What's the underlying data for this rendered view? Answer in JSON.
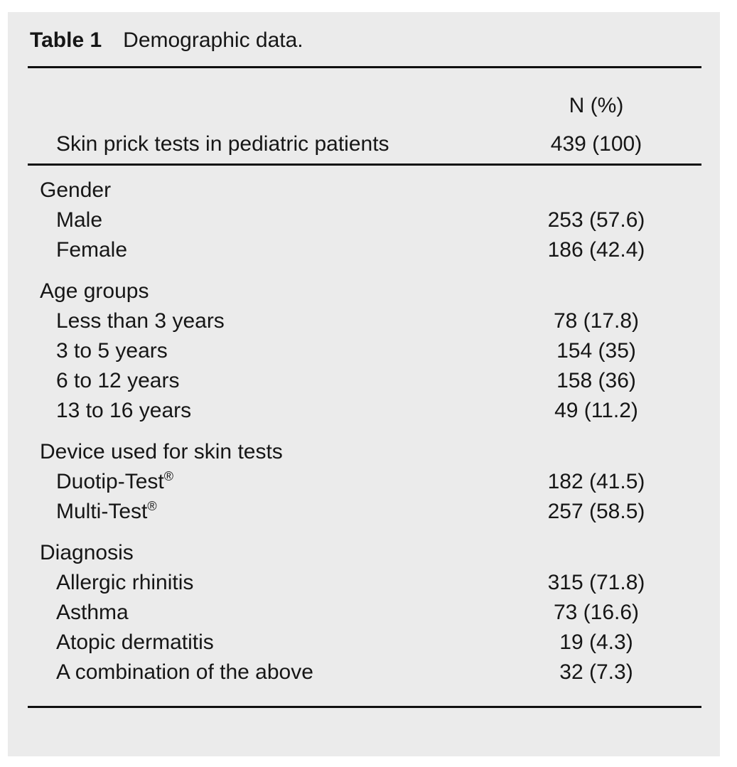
{
  "colors": {
    "panel_bg": "#ebebeb",
    "text": "#161616",
    "rule": "#0f0f0f",
    "page_bg": "#ffffff"
  },
  "table": {
    "label": "Table 1",
    "title": "Demographic data.",
    "column_header": "N (%)",
    "summary_row": {
      "label": "Skin prick tests in pediatric patients",
      "value": "439 (100)"
    },
    "sections": [
      {
        "header": "Gender",
        "rows": [
          {
            "label": "Male",
            "value": "253 (57.6)"
          },
          {
            "label": "Female",
            "value": "186 (42.4)"
          }
        ]
      },
      {
        "header": "Age groups",
        "rows": [
          {
            "label": "Less than 3 years",
            "value": "78 (17.8)"
          },
          {
            "label": "3 to 5 years",
            "value": "154 (35)"
          },
          {
            "label": "6 to 12 years",
            "value": "158 (36)"
          },
          {
            "label": "13 to 16 years",
            "value": "49 (11.2)"
          }
        ]
      },
      {
        "header": "Device used for skin tests",
        "rows": [
          {
            "label": "Duotip-Test",
            "suffix": "®",
            "value": "182 (41.5)"
          },
          {
            "label": "Multi-Test",
            "suffix": "®",
            "value": "257 (58.5)"
          }
        ]
      },
      {
        "header": "Diagnosis",
        "rows": [
          {
            "label": "Allergic rhinitis",
            "value": "315 (71.8)"
          },
          {
            "label": "Asthma",
            "value": "73 (16.6)"
          },
          {
            "label": "Atopic dermatitis",
            "value": "19 (4.3)"
          },
          {
            "label": "A combination of the above",
            "value": "32 (7.3)"
          }
        ]
      }
    ]
  }
}
